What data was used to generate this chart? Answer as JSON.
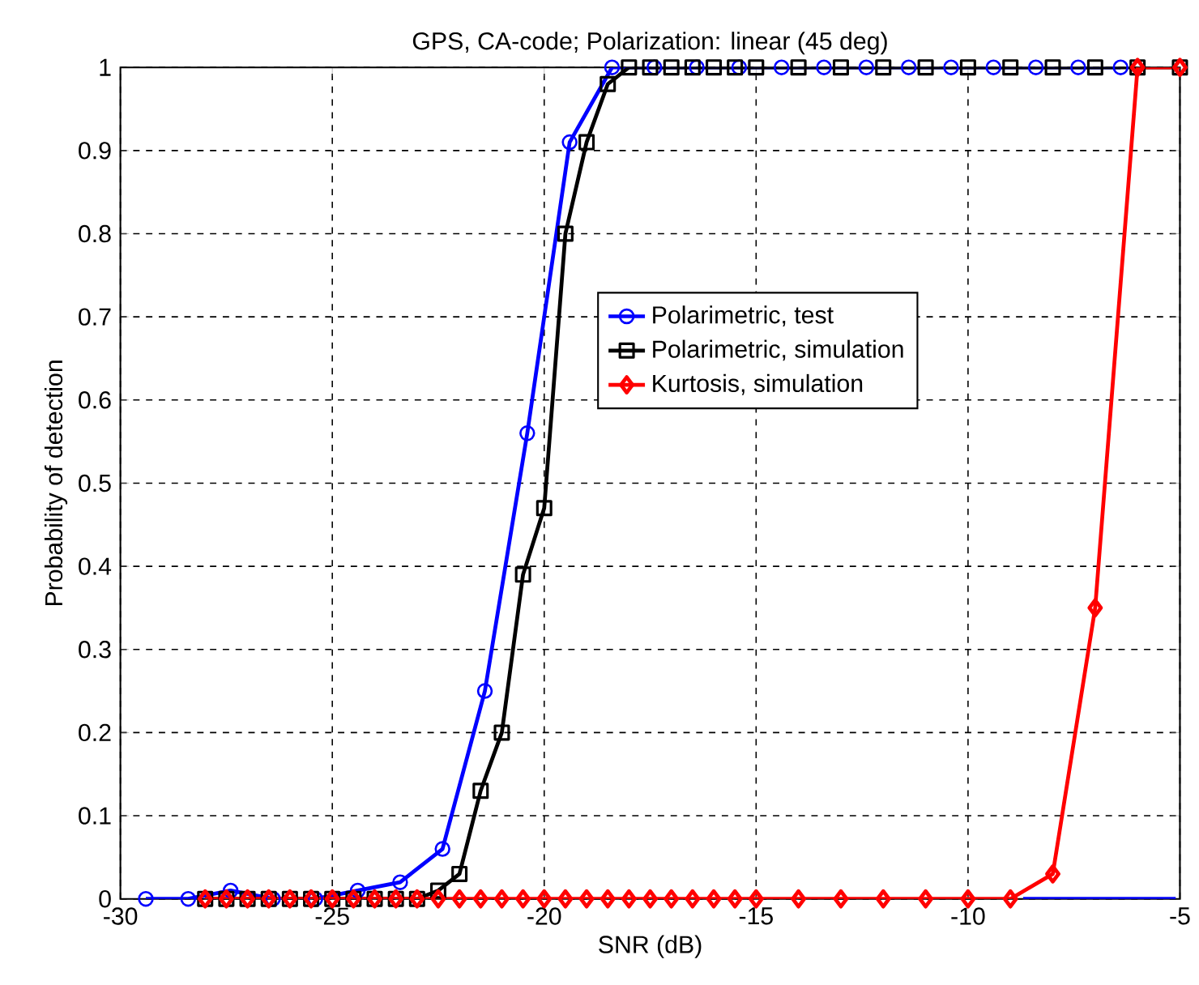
{
  "chart_data": {
    "type": "line",
    "title": "GPS, CA-code; Polarization: linear (45 deg)",
    "xlabel": "SNR (dB)",
    "ylabel": "Probability of detection",
    "xlim": [
      -30,
      -5
    ],
    "ylim": [
      0,
      1
    ],
    "xticks": [
      -30,
      -25,
      -20,
      -15,
      -10,
      -5
    ],
    "yticks": [
      0,
      0.1,
      0.2,
      0.3,
      0.4,
      0.5,
      0.6,
      0.7,
      0.8,
      0.9,
      1
    ],
    "grid": true,
    "legend": "right",
    "line_style": "solid",
    "series": [
      {
        "name": "Polarimetric, test",
        "color": "#0000ff",
        "marker": "circle",
        "x": [
          -29.4,
          -28.4,
          -27.4,
          -26.4,
          -25.4,
          -24.4,
          -23.4,
          -22.4,
          -21.4,
          -20.4,
          -19.4,
          -18.4,
          -17.4,
          -16.4,
          -15.4,
          -14.4,
          -13.4,
          -12.4,
          -11.4,
          -10.4,
          -9.4,
          -8.4,
          -7.4,
          -6.4
        ],
        "values": [
          0,
          0,
          0.01,
          0,
          0,
          0.01,
          0.02,
          0.06,
          0.25,
          0.56,
          0.91,
          1,
          1,
          1,
          1,
          1,
          1,
          1,
          1,
          1,
          1,
          1,
          1,
          1
        ]
      },
      {
        "name": "Polarimetric, simulation",
        "color": "#000000",
        "marker": "square",
        "x": [
          -28,
          -27.5,
          -27,
          -26.5,
          -26,
          -25.5,
          -25,
          -24.5,
          -24,
          -23.5,
          -23,
          -22.5,
          -22,
          -21.5,
          -21,
          -20.5,
          -20,
          -19.5,
          -19,
          -18.5,
          -18,
          -17.5,
          -17,
          -16.5,
          -16,
          -15.5,
          -15,
          -14,
          -13,
          -12,
          -11,
          -10,
          -9,
          -8,
          -7,
          -6,
          -5
        ],
        "values": [
          0,
          0,
          0,
          0,
          0,
          0,
          0,
          0,
          0,
          0,
          0,
          0.01,
          0.03,
          0.13,
          0.2,
          0.39,
          0.47,
          0.8,
          0.91,
          0.98,
          1,
          1,
          1,
          1,
          1,
          1,
          1,
          1,
          1,
          1,
          1,
          1,
          1,
          1,
          1,
          1,
          1
        ]
      },
      {
        "name": "Kurtosis, simulation",
        "color": "#ff0000",
        "marker": "diamond",
        "x": [
          -28,
          -27.5,
          -27,
          -26.5,
          -26,
          -25.5,
          -25,
          -24.5,
          -24,
          -23.5,
          -23,
          -22.5,
          -22,
          -21.5,
          -21,
          -20.5,
          -20,
          -19.5,
          -19,
          -18.5,
          -18,
          -17.5,
          -17,
          -16.5,
          -16,
          -15.5,
          -15,
          -14,
          -13,
          -12,
          -11,
          -10,
          -9,
          -8,
          -7,
          -6,
          -5
        ],
        "values": [
          0,
          0,
          0,
          0,
          0,
          0,
          0,
          0,
          0,
          0,
          0,
          0,
          0,
          0,
          0,
          0,
          0,
          0,
          0,
          0,
          0,
          0,
          0,
          0,
          0,
          0,
          0,
          0,
          0,
          0,
          0,
          0,
          0,
          0.03,
          0.35,
          1,
          1
        ]
      },
      {
        "color": "#0000ff",
        "marker": "none",
        "x": [
          -8.7,
          -5.1
        ],
        "values": [
          0,
          0
        ]
      }
    ]
  }
}
